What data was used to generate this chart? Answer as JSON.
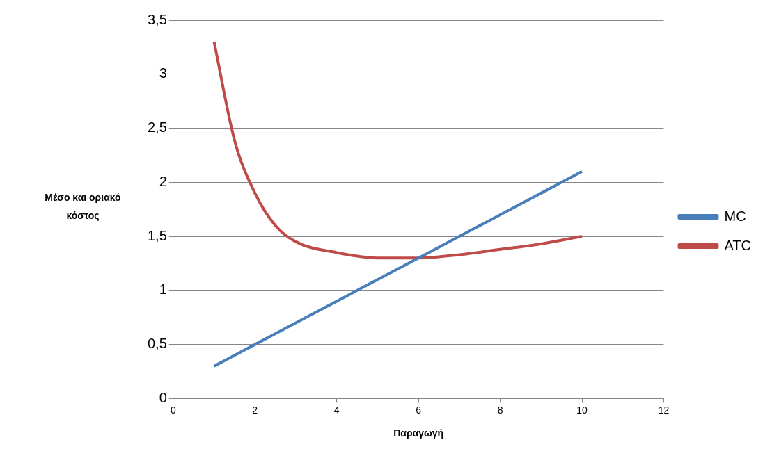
{
  "chart_data": {
    "type": "line",
    "xlabel": "Παραγωγή",
    "ylabel": "Μέσο και οριακό κόστος",
    "xlim": [
      0,
      12
    ],
    "xticks": [
      0,
      2,
      4,
      6,
      8,
      10,
      12
    ],
    "ylim": [
      0,
      3.5
    ],
    "yticks": [
      0,
      {
        "value": 0.5,
        "label": "0,5"
      },
      1,
      {
        "value": 1.5,
        "label": "1,5"
      },
      2,
      {
        "value": 2.5,
        "label": "2,5"
      },
      3,
      {
        "value": 3.5,
        "label": "3,5"
      }
    ],
    "grid": "y",
    "legend": "right",
    "marker": "none",
    "x": [
      1,
      2,
      3,
      4,
      5,
      6,
      7,
      8,
      9,
      10
    ],
    "series": [
      {
        "name": "MC",
        "color": "#4a7ebb",
        "values": [
          0.3,
          0.5,
          0.7,
          0.9,
          1.1,
          1.3,
          1.5,
          1.7,
          1.9,
          2.1
        ]
      },
      {
        "name": "ATC",
        "color": "#be4b48",
        "x": [
          1,
          1.5,
          2,
          2.5,
          3,
          4,
          5,
          6,
          7,
          8,
          9,
          10
        ],
        "values": [
          3.3,
          2.39,
          1.9,
          1.6,
          1.45,
          1.35,
          1.3,
          1.3,
          1.33,
          1.38,
          1.43,
          1.5
        ]
      }
    ]
  }
}
